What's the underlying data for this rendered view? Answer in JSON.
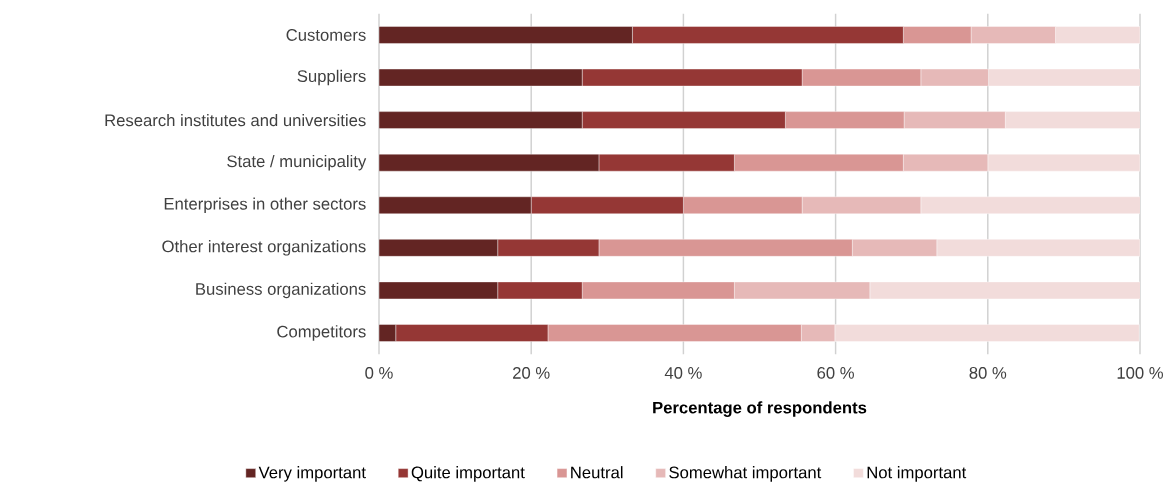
{
  "chart_data": {
    "type": "bar",
    "orientation": "horizontal",
    "stacked": true,
    "xlabel": "Percentage of respondents",
    "categories": [
      "Customers",
      "Suppliers",
      "Research institutes and universities",
      "State / municipality",
      "Enterprises in other sectors",
      "Other interest organizations",
      "Business organizations",
      "Competitors"
    ],
    "series": [
      {
        "name": "Very important",
        "color": "#632523",
        "values": [
          33.3,
          26.7,
          26.7,
          28.9,
          20.0,
          15.6,
          15.6,
          2.2
        ]
      },
      {
        "name": "Quite important",
        "color": "#953735",
        "values": [
          35.6,
          28.9,
          26.7,
          17.8,
          20.0,
          13.3,
          11.1,
          20.0
        ]
      },
      {
        "name": "Neutral",
        "color": "#d99694",
        "values": [
          8.9,
          15.6,
          15.6,
          22.2,
          15.6,
          33.3,
          20.0,
          33.3
        ]
      },
      {
        "name": "Somewhat important",
        "color": "#e6b9b8",
        "values": [
          11.1,
          8.9,
          13.3,
          11.1,
          15.6,
          11.1,
          17.8,
          4.4
        ]
      },
      {
        "name": "Not important",
        "color": "#f2dcdb",
        "values": [
          11.1,
          20.0,
          17.8,
          20.0,
          28.9,
          26.7,
          35.6,
          40.0
        ]
      }
    ],
    "xlim": [
      0,
      100
    ],
    "xticks": [
      {
        "value": 0,
        "label": "0 %"
      },
      {
        "value": 20,
        "label": "20 %"
      },
      {
        "value": 40,
        "label": "40 %"
      },
      {
        "value": 60,
        "label": "60 %"
      },
      {
        "value": 80,
        "label": "80 %"
      },
      {
        "value": 100,
        "label": "100 %"
      }
    ],
    "grid": "x",
    "legend": "bottom"
  }
}
